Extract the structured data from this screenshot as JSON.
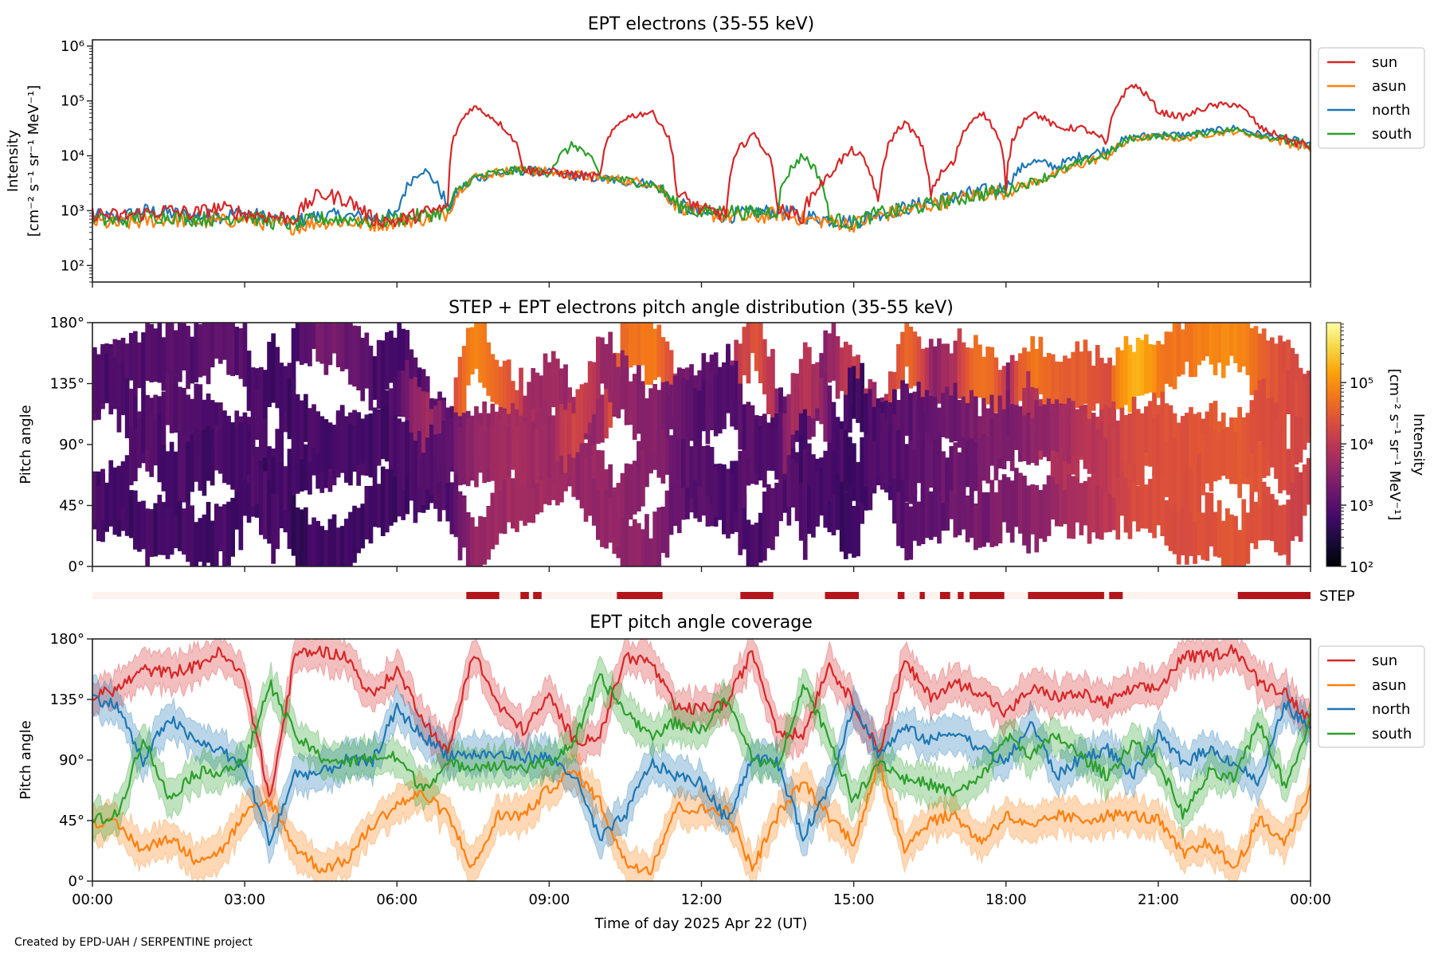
{
  "footer": "Created by EPD-UAH / SERPENTINE project",
  "colors": {
    "sun": "#d62728",
    "asun": "#ff7f0e",
    "north": "#1f77b4",
    "south": "#2ca02c",
    "step_on": "#b2151b",
    "step_off": "#fdf3ee"
  },
  "chart_data": [
    {
      "type": "line",
      "title": "EPT electrons (35-55 keV)",
      "ylabel": [
        "Intensity",
        "[cm⁻² s⁻¹ sr⁻¹ MeV⁻¹]"
      ],
      "yscale": "log",
      "ylim": [
        50,
        1300000
      ],
      "yticks": [
        "10²",
        "10³",
        "10⁴",
        "10⁵",
        "10⁶"
      ],
      "legend_position": "outside-right",
      "x": [
        "00:00",
        "00:30",
        "01:00",
        "01:30",
        "02:00",
        "02:30",
        "03:00",
        "03:30",
        "04:00",
        "04:30",
        "05:00",
        "05:30",
        "06:00",
        "06:30",
        "07:00",
        "07:30",
        "08:00",
        "08:30",
        "09:00",
        "09:30",
        "10:00",
        "10:30",
        "11:00",
        "11:30",
        "12:00",
        "12:30",
        "13:00",
        "13:30",
        "14:00",
        "14:30",
        "15:00",
        "15:30",
        "16:00",
        "16:30",
        "17:00",
        "17:30",
        "18:00",
        "18:30",
        "19:00",
        "19:30",
        "20:00",
        "20:30",
        "21:00",
        "21:30",
        "22:00",
        "22:30",
        "23:00",
        "23:30",
        "24:00"
      ],
      "series": [
        {
          "name": "sun",
          "values": [
            890,
            790,
            890,
            1000,
            890,
            1120,
            890,
            790,
            710,
            2000,
            1580,
            710,
            630,
            890,
            1120,
            79000,
            40000,
            5600,
            5000,
            4500,
            4000,
            50000,
            63000,
            2000,
            1000,
            890,
            25000,
            1000,
            790,
            4000,
            12600,
            630,
            40000,
            2000,
            7900,
            63000,
            2000,
            63000,
            32000,
            32000,
            16000,
            200000,
            63000,
            50000,
            79000,
            89000,
            32000,
            20000,
            14000
          ]
        },
        {
          "name": "asun",
          "values": [
            630,
            560,
            630,
            710,
            630,
            630,
            710,
            560,
            500,
            630,
            630,
            560,
            630,
            710,
            890,
            4000,
            5000,
            5600,
            5000,
            4500,
            4000,
            3550,
            3200,
            1260,
            890,
            790,
            710,
            890,
            710,
            630,
            560,
            790,
            1000,
            1260,
            1580,
            2000,
            2240,
            3200,
            4500,
            7100,
            10000,
            20000,
            22400,
            20000,
            25000,
            28000,
            22400,
            17800,
            14000
          ]
        },
        {
          "name": "north",
          "values": [
            800,
            710,
            1000,
            900,
            800,
            800,
            900,
            710,
            630,
            800,
            800,
            710,
            800,
            5700,
            1000,
            3800,
            4800,
            5400,
            4800,
            4300,
            3900,
            3400,
            3100,
            1300,
            900,
            800,
            900,
            1000,
            800,
            700,
            600,
            900,
            1100,
            1400,
            1800,
            2200,
            2600,
            8000,
            6300,
            10000,
            12600,
            22000,
            25000,
            24000,
            28000,
            32000,
            25000,
            20000,
            15000
          ]
        },
        {
          "name": "south",
          "values": [
            710,
            630,
            800,
            800,
            710,
            710,
            800,
            630,
            560,
            710,
            710,
            630,
            710,
            800,
            1000,
            3900,
            4900,
            5500,
            5000,
            16000,
            4000,
            3500,
            3100,
            1300,
            900,
            1000,
            900,
            1000,
            10000,
            700,
            600,
            900,
            1000,
            1300,
            1600,
            2000,
            2300,
            3300,
            4800,
            7500,
            10500,
            21000,
            23000,
            22000,
            27000,
            30000,
            24000,
            19000,
            14500
          ]
        }
      ]
    },
    {
      "type": "heatmap",
      "title": "STEP + EPT electrons pitch angle distribution (35-55 keV)",
      "ylabel": "Pitch angle",
      "ylim": [
        0,
        180
      ],
      "yticks": [
        "0°",
        "45°",
        "90°",
        "135°",
        "180°"
      ],
      "colormap": "inferno",
      "colorbar": {
        "label": [
          "Intensity",
          "[cm⁻² s⁻¹ sr⁻¹ MeV⁻¹]"
        ],
        "scale": "log",
        "range": [
          100,
          950000
        ],
        "ticks": [
          "10²",
          "10³",
          "10⁴",
          "10⁵"
        ]
      },
      "step_label": "STEP",
      "step_coverage": [
        [
          "07:22",
          "08:01"
        ],
        [
          "08:26",
          "08:36"
        ],
        [
          "08:41",
          "08:51"
        ],
        [
          "10:20",
          "11:14"
        ],
        [
          "12:46",
          "13:25"
        ],
        [
          "14:26",
          "15:06"
        ],
        [
          "15:52",
          "16:00"
        ],
        [
          "16:18",
          "16:24"
        ],
        [
          "16:42",
          "16:54"
        ],
        [
          "17:03",
          "17:10"
        ],
        [
          "17:17",
          "17:58"
        ],
        [
          "18:26",
          "19:56"
        ],
        [
          "20:02",
          "20:18"
        ],
        [
          "22:34",
          "24:00"
        ]
      ]
    },
    {
      "type": "line",
      "title": "EPT pitch angle coverage",
      "ylabel": "Pitch angle",
      "xlabel": "Time of day 2025 Apr 22 (UT)",
      "ylim": [
        0,
        180
      ],
      "yticks": [
        "0°",
        "45°",
        "90°",
        "135°",
        "180°"
      ],
      "xticks": [
        "00:00",
        "03:00",
        "06:00",
        "09:00",
        "12:00",
        "15:00",
        "18:00",
        "21:00",
        "00:00"
      ],
      "legend_position": "outside-right",
      "series": [
        {
          "name": "sun",
          "values": [
            137,
            143,
            157,
            155,
            159,
            170,
            151,
            60,
            169,
            171,
            167,
            137,
            157,
            122,
            94,
            171,
            130,
            112,
            137,
            104,
            108,
            167,
            163,
            128,
            128,
            132,
            171,
            112,
            108,
            161,
            132,
            96,
            163,
            137,
            147,
            141,
            124,
            143,
            137,
            139,
            132,
            143,
            143,
            167,
            167,
            173,
            147,
            141,
            118
          ]
        },
        {
          "name": "asun",
          "values": [
            45,
            41,
            23,
            33,
            17,
            21,
            49,
            60,
            25,
            9,
            15,
            41,
            57,
            65,
            49,
            9,
            49,
            49,
            69,
            82,
            59,
            13,
            9,
            55,
            53,
            53,
            9,
            49,
            74,
            49,
            29,
            86,
            25,
            45,
            49,
            29,
            49,
            39,
            49,
            45,
            49,
            49,
            45,
            19,
            29,
            9,
            45,
            29,
            69
          ]
        },
        {
          "name": "north",
          "values": [
            137,
            130,
            88,
            122,
            104,
            98,
            84,
            29,
            80,
            80,
            90,
            88,
            128,
            108,
            94,
            94,
            94,
            92,
            92,
            78,
            31,
            49,
            88,
            78,
            73,
            45,
            92,
            88,
            33,
            69,
            132,
            94,
            114,
            104,
            112,
            98,
            88,
            118,
            78,
            92,
            98,
            78,
            108,
            88,
            98,
            88,
            73,
            132,
            112
          ]
        },
        {
          "name": "south",
          "values": [
            45,
            49,
            108,
            61,
            80,
            82,
            88,
            147,
            108,
            92,
            88,
            92,
            92,
            69,
            86,
            86,
            86,
            84,
            88,
            104,
            151,
            126,
            108,
            118,
            112,
            135,
            92,
            84,
            147,
            108,
            59,
            90,
            76,
            72,
            65,
            76,
            108,
            94,
            108,
            92,
            78,
            104,
            88,
            49,
            80,
            76,
            118,
            69,
            122
          ]
        }
      ]
    }
  ]
}
